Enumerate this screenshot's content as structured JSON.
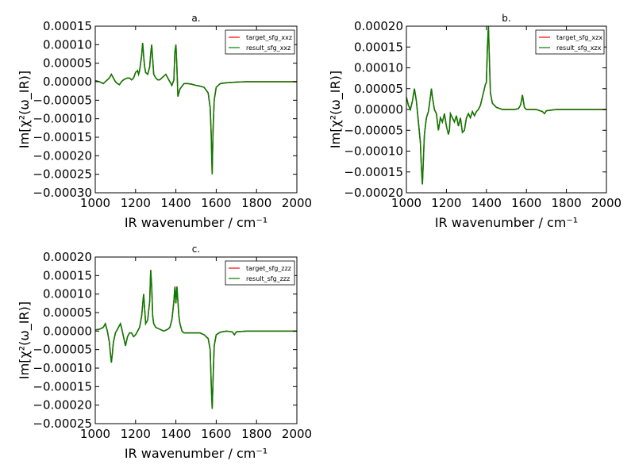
{
  "figure": {
    "background": "#ffffff"
  },
  "chart_data": [
    {
      "type": "line",
      "title": "a.",
      "xlabel": "IR wavenumber / cm⁻¹",
      "ylabel": "Im[χ²(ω_IR)]",
      "xlim": [
        1000,
        2000
      ],
      "ylim": [
        -0.0003,
        0.00015
      ],
      "xticks": [
        1000,
        1200,
        1400,
        1600,
        1800,
        2000
      ],
      "xtick_labels": [
        "1000",
        "1200",
        "1400",
        "1600",
        "1800",
        "2000"
      ],
      "yticks": [
        0.00015,
        0.0001,
        5e-05,
        0.0,
        -5e-05,
        -0.0001,
        -0.00015,
        -0.0002,
        -0.00025,
        -0.0003
      ],
      "ytick_labels": [
        "0.00015",
        "0.00010",
        "0.00005",
        "0.00000",
        "−0.00005",
        "−0.00010",
        "−0.00015",
        "−0.00020",
        "−0.00025",
        "−0.00030"
      ],
      "grid": false,
      "legend": "top-right",
      "series": [
        {
          "name": "target_sfg_xxz",
          "color": "#ff0000"
        },
        {
          "name": "result_sfg_xxz",
          "color": "#007f00"
        }
      ],
      "x": [
        1000,
        1020,
        1040,
        1050,
        1060,
        1070,
        1080,
        1090,
        1100,
        1110,
        1120,
        1130,
        1140,
        1150,
        1160,
        1170,
        1180,
        1190,
        1200,
        1210,
        1215,
        1220,
        1230,
        1235,
        1240,
        1245,
        1250,
        1260,
        1270,
        1275,
        1280,
        1285,
        1290,
        1300,
        1310,
        1320,
        1330,
        1340,
        1350,
        1360,
        1370,
        1380,
        1390,
        1395,
        1400,
        1405,
        1410,
        1420,
        1440,
        1460,
        1480,
        1500,
        1520,
        1540,
        1560,
        1570,
        1575,
        1578,
        1580,
        1582,
        1585,
        1590,
        1600,
        1620,
        1650,
        1680,
        1700,
        1750,
        1800,
        1900,
        2000
      ],
      "y": [
        3e-06,
        0.0,
        -5e-06,
        0.0,
        5e-06,
        1e-05,
        2e-05,
        1e-05,
        0.0,
        -5e-06,
        -8e-06,
        0.0,
        5e-06,
        8e-06,
        1e-05,
        1e-05,
        5e-06,
        1e-05,
        2.5e-05,
        3e-05,
        2e-05,
        3e-05,
        7e-05,
        0.000105,
        7e-05,
        4e-05,
        2.5e-05,
        2e-05,
        4e-05,
        7.5e-05,
        0.0001,
        6e-05,
        2e-05,
        1e-05,
        5e-06,
        5e-06,
        1e-05,
        1.5e-05,
        2e-05,
        1e-05,
        0.0,
        -1e-05,
        5e-06,
        8e-05,
        0.0001,
        4e-05,
        -4e-05,
        -2e-05,
        -5e-06,
        -5e-06,
        -7e-06,
        -1e-05,
        -1.2e-05,
        -1.5e-05,
        -3e-05,
        -7e-05,
        -0.00014,
        -0.00021,
        -0.00025,
        -0.00019,
        -0.00012,
        -5e-05,
        -1.5e-05,
        -5e-06,
        -3e-06,
        -2e-06,
        -1e-06,
        0.0,
        0.0,
        0.0,
        0.0
      ]
    },
    {
      "type": "line",
      "title": "b.",
      "xlabel": "IR wavenumber / cm⁻¹",
      "ylabel": "Im[χ²(ω_IR)]",
      "xlim": [
        1000,
        2000
      ],
      "ylim": [
        -0.0002,
        0.0002
      ],
      "xticks": [
        1000,
        1200,
        1400,
        1600,
        1800,
        2000
      ],
      "xtick_labels": [
        "1000",
        "1200",
        "1400",
        "1600",
        "1800",
        "2000"
      ],
      "yticks": [
        0.0002,
        0.00015,
        0.0001,
        5e-05,
        0.0,
        -5e-05,
        -0.0001,
        -0.00015,
        -0.0002
      ],
      "ytick_labels": [
        "0.00020",
        "0.00015",
        "0.00010",
        "0.00005",
        "0.00000",
        "−0.00005",
        "−0.00010",
        "−0.00015",
        "−0.00020"
      ],
      "grid": false,
      "legend": "top-right",
      "series": [
        {
          "name": "target_sfg_xzx",
          "color": "#ff0000"
        },
        {
          "name": "result_sfg_xzx",
          "color": "#007f00"
        }
      ],
      "x": [
        1000,
        1010,
        1020,
        1030,
        1040,
        1050,
        1060,
        1070,
        1075,
        1080,
        1085,
        1090,
        1100,
        1110,
        1120,
        1125,
        1130,
        1140,
        1150,
        1160,
        1170,
        1180,
        1190,
        1200,
        1210,
        1215,
        1220,
        1230,
        1240,
        1250,
        1260,
        1265,
        1270,
        1280,
        1290,
        1300,
        1310,
        1320,
        1330,
        1340,
        1350,
        1360,
        1370,
        1380,
        1390,
        1395,
        1400,
        1405,
        1410,
        1415,
        1420,
        1430,
        1450,
        1480,
        1500,
        1520,
        1540,
        1560,
        1570,
        1575,
        1580,
        1585,
        1590,
        1600,
        1650,
        1680,
        1690,
        1700,
        1750,
        1800,
        1900,
        2000
      ],
      "y": [
        3e-05,
        1e-05,
        0.0,
        2e-05,
        5e-05,
        2e-05,
        -3e-05,
        -8e-05,
        -0.00014,
        -0.00018,
        -0.00012,
        -6e-05,
        -2e-05,
        -5e-06,
        3e-05,
        5e-05,
        3e-05,
        0.0,
        -1e-05,
        -5e-05,
        -2e-05,
        -3e-05,
        -1e-05,
        -4e-05,
        -6e-05,
        -5e-05,
        -1e-05,
        -2e-05,
        -3e-05,
        -1.5e-05,
        -4e-05,
        -3e-05,
        -2e-05,
        -5.5e-05,
        -5e-05,
        -2e-05,
        -1e-05,
        -2e-05,
        -5e-06,
        -1.5e-05,
        -5e-06,
        0.0,
        1e-05,
        3e-05,
        5e-05,
        6e-05,
        6.5e-05,
        0.00015,
        0.0002,
        0.00012,
        4e-05,
        1.5e-05,
        5e-06,
        0.0,
        0.0,
        0.0,
        0.0,
        2e-06,
        1e-05,
        2e-05,
        3.5e-05,
        2e-05,
        5e-06,
        0.0,
        0.0,
        -5e-06,
        -1e-05,
        -3e-06,
        0.0,
        0.0,
        0.0,
        0.0
      ]
    },
    {
      "type": "line",
      "title": "c.",
      "xlabel": "IR wavenumber / cm⁻¹",
      "ylabel": "Im[χ²(ω_IR)]",
      "xlim": [
        1000,
        2000
      ],
      "ylim": [
        -0.00025,
        0.0002
      ],
      "xticks": [
        1000,
        1200,
        1400,
        1600,
        1800,
        2000
      ],
      "xtick_labels": [
        "1000",
        "1200",
        "1400",
        "1600",
        "1800",
        "2000"
      ],
      "yticks": [
        0.0002,
        0.00015,
        0.0001,
        5e-05,
        0.0,
        -5e-05,
        -0.0001,
        -0.00015,
        -0.0002,
        -0.00025
      ],
      "ytick_labels": [
        "0.00020",
        "0.00015",
        "0.00010",
        "0.00005",
        "0.00000",
        "−0.00005",
        "−0.00010",
        "−0.00015",
        "−0.00020",
        "−0.00025"
      ],
      "grid": false,
      "legend": "top-right",
      "series": [
        {
          "name": "target_sfg_zzz",
          "color": "#ff0000"
        },
        {
          "name": "result_sfg_zzz",
          "color": "#007f00"
        }
      ],
      "x": [
        1000,
        1020,
        1040,
        1050,
        1060,
        1070,
        1075,
        1080,
        1085,
        1090,
        1100,
        1110,
        1120,
        1125,
        1130,
        1140,
        1150,
        1160,
        1170,
        1180,
        1190,
        1200,
        1210,
        1220,
        1230,
        1240,
        1245,
        1250,
        1260,
        1270,
        1275,
        1280,
        1285,
        1290,
        1300,
        1320,
        1340,
        1360,
        1370,
        1380,
        1390,
        1395,
        1400,
        1405,
        1410,
        1415,
        1420,
        1430,
        1440,
        1460,
        1480,
        1500,
        1520,
        1540,
        1560,
        1570,
        1575,
        1580,
        1585,
        1590,
        1600,
        1620,
        1650,
        1680,
        1690,
        1700,
        1750,
        1800,
        1900,
        2000
      ],
      "y": [
        3e-06,
        5e-06,
        1e-05,
        2e-05,
        0.0,
        -3e-05,
        -6e-05,
        -8.5e-05,
        -6e-05,
        -3e-05,
        -5e-06,
        5e-06,
        1.5e-05,
        2e-05,
        1e-05,
        -1.5e-05,
        -4e-05,
        -1.5e-05,
        -5e-06,
        -5e-06,
        -1.5e-05,
        -1e-05,
        0.0,
        1e-05,
        4e-05,
        0.0001,
        6e-05,
        2e-05,
        3e-05,
        8e-05,
        0.000165,
        0.00012,
        4e-05,
        2e-05,
        1e-05,
        5e-06,
        0.0,
        5e-06,
        1e-05,
        3e-05,
        8e-05,
        0.00012,
        7.5e-05,
        0.00012,
        8e-05,
        4e-05,
        2e-05,
        0.0,
        -5e-06,
        -5e-06,
        -5e-06,
        -5e-06,
        -5e-06,
        -1e-05,
        -2e-05,
        -5e-05,
        -0.00014,
        -0.00021,
        -0.00012,
        -4e-05,
        -1e-05,
        -3e-06,
        0.0,
        -2e-06,
        -1e-05,
        -2e-06,
        0.0,
        0.0,
        0.0,
        0.0
      ]
    }
  ]
}
